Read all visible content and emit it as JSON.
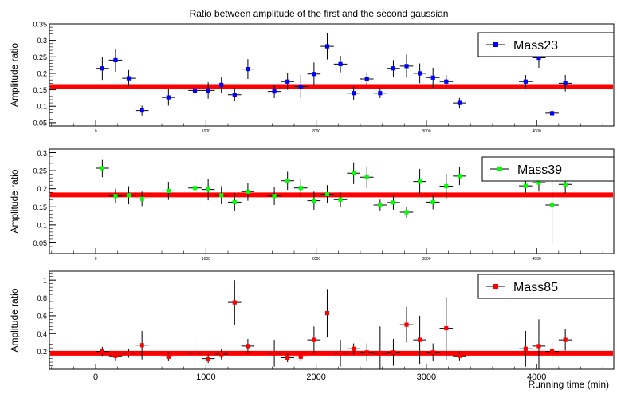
{
  "chart_data": {
    "type": "scatter",
    "title": "Ratio between amplitude of the first and the second gaussian",
    "xlabel": "Running time (min)",
    "xlim": [
      -420,
      4700
    ],
    "x_ticks_main": [
      0,
      1000,
      2000,
      3000,
      4000
    ],
    "x_ticks_small": [
      0,
      1000,
      2000,
      3000,
      4000
    ],
    "grid": false,
    "panels": [
      {
        "name": "Mass23",
        "ylabel": "Amplitude ratio",
        "ylim": [
          0.04,
          0.35
        ],
        "yticks": [
          0.05,
          0.1,
          0.15,
          0.2,
          0.25,
          0.3,
          0.35
        ],
        "ytick_labels": [
          "0.05",
          "0.1",
          "0.15",
          "0.2",
          "0.25",
          "0.3",
          "0.35"
        ],
        "marker_color": "#0000ff",
        "fit_value": 0.16,
        "points": [
          {
            "x": 60,
            "y": 0.215,
            "ey": 0.035,
            "ex": 60
          },
          {
            "x": 180,
            "y": 0.24,
            "ey": 0.035,
            "ex": 60
          },
          {
            "x": 300,
            "y": 0.185,
            "ey": 0.025,
            "ex": 60
          },
          {
            "x": 420,
            "y": 0.087,
            "ey": 0.015,
            "ex": 60
          },
          {
            "x": 660,
            "y": 0.127,
            "ey": 0.025,
            "ex": 60
          },
          {
            "x": 900,
            "y": 0.148,
            "ey": 0.025,
            "ex": 60
          },
          {
            "x": 1020,
            "y": 0.148,
            "ey": 0.025,
            "ex": 60
          },
          {
            "x": 1140,
            "y": 0.165,
            "ey": 0.025,
            "ex": 60
          },
          {
            "x": 1260,
            "y": 0.135,
            "ey": 0.02,
            "ex": 60
          },
          {
            "x": 1380,
            "y": 0.213,
            "ey": 0.03,
            "ex": 60
          },
          {
            "x": 1620,
            "y": 0.145,
            "ey": 0.02,
            "ex": 60
          },
          {
            "x": 1740,
            "y": 0.175,
            "ey": 0.025,
            "ex": 60
          },
          {
            "x": 1860,
            "y": 0.16,
            "ey": 0.035,
            "ex": 60
          },
          {
            "x": 1980,
            "y": 0.198,
            "ey": 0.035,
            "ex": 60
          },
          {
            "x": 2100,
            "y": 0.282,
            "ey": 0.04,
            "ex": 60
          },
          {
            "x": 2220,
            "y": 0.228,
            "ey": 0.025,
            "ex": 60
          },
          {
            "x": 2340,
            "y": 0.14,
            "ey": 0.02,
            "ex": 60
          },
          {
            "x": 2460,
            "y": 0.183,
            "ey": 0.02,
            "ex": 60
          },
          {
            "x": 2580,
            "y": 0.14,
            "ey": 0.015,
            "ex": 60
          },
          {
            "x": 2700,
            "y": 0.215,
            "ey": 0.025,
            "ex": 60
          },
          {
            "x": 2820,
            "y": 0.222,
            "ey": 0.035,
            "ex": 60
          },
          {
            "x": 2940,
            "y": 0.2,
            "ey": 0.03,
            "ex": 60
          },
          {
            "x": 3060,
            "y": 0.187,
            "ey": 0.03,
            "ex": 60
          },
          {
            "x": 3180,
            "y": 0.175,
            "ey": 0.02,
            "ex": 60
          },
          {
            "x": 3300,
            "y": 0.11,
            "ey": 0.015,
            "ex": 60
          },
          {
            "x": 3900,
            "y": 0.175,
            "ey": 0.02,
            "ex": 60
          },
          {
            "x": 4020,
            "y": 0.247,
            "ey": 0.03,
            "ex": 60
          },
          {
            "x": 4140,
            "y": 0.079,
            "ey": 0.013,
            "ex": 60
          },
          {
            "x": 4260,
            "y": 0.17,
            "ey": 0.025,
            "ex": 60
          }
        ]
      },
      {
        "name": "Mass39",
        "ylabel": "Amplitude ratio",
        "ylim": [
          0.02,
          0.31
        ],
        "yticks": [
          0.05,
          0.1,
          0.15,
          0.2,
          0.25,
          0.3
        ],
        "ytick_labels": [
          "0.05",
          "0.1",
          "0.15",
          "0.2",
          "0.25",
          "0.3"
        ],
        "marker_color": "#00ff00",
        "fit_value": 0.183,
        "points": [
          {
            "x": 60,
            "y": 0.257,
            "ey": 0.025,
            "ex": 60
          },
          {
            "x": 180,
            "y": 0.18,
            "ey": 0.02,
            "ex": 60
          },
          {
            "x": 300,
            "y": 0.182,
            "ey": 0.025,
            "ex": 60
          },
          {
            "x": 420,
            "y": 0.172,
            "ey": 0.02,
            "ex": 60
          },
          {
            "x": 660,
            "y": 0.194,
            "ey": 0.025,
            "ex": 60
          },
          {
            "x": 900,
            "y": 0.202,
            "ey": 0.025,
            "ex": 60
          },
          {
            "x": 1020,
            "y": 0.198,
            "ey": 0.03,
            "ex": 60
          },
          {
            "x": 1140,
            "y": 0.182,
            "ey": 0.025,
            "ex": 60
          },
          {
            "x": 1260,
            "y": 0.163,
            "ey": 0.025,
            "ex": 60
          },
          {
            "x": 1380,
            "y": 0.192,
            "ey": 0.025,
            "ex": 60
          },
          {
            "x": 1620,
            "y": 0.18,
            "ey": 0.025,
            "ex": 60
          },
          {
            "x": 1740,
            "y": 0.222,
            "ey": 0.025,
            "ex": 60
          },
          {
            "x": 1860,
            "y": 0.202,
            "ey": 0.025,
            "ex": 60
          },
          {
            "x": 1980,
            "y": 0.167,
            "ey": 0.025,
            "ex": 60
          },
          {
            "x": 2100,
            "y": 0.185,
            "ey": 0.025,
            "ex": 60
          },
          {
            "x": 2220,
            "y": 0.17,
            "ey": 0.02,
            "ex": 60
          },
          {
            "x": 2340,
            "y": 0.243,
            "ey": 0.03,
            "ex": 60
          },
          {
            "x": 2460,
            "y": 0.232,
            "ey": 0.03,
            "ex": 60
          },
          {
            "x": 2580,
            "y": 0.155,
            "ey": 0.015,
            "ex": 60
          },
          {
            "x": 2700,
            "y": 0.162,
            "ey": 0.02,
            "ex": 60
          },
          {
            "x": 2820,
            "y": 0.135,
            "ey": 0.015,
            "ex": 60
          },
          {
            "x": 2940,
            "y": 0.22,
            "ey": 0.035,
            "ex": 60
          },
          {
            "x": 3060,
            "y": 0.163,
            "ey": 0.02,
            "ex": 60
          },
          {
            "x": 3180,
            "y": 0.207,
            "ey": 0.035,
            "ex": 60
          },
          {
            "x": 3300,
            "y": 0.235,
            "ey": 0.025,
            "ex": 60
          },
          {
            "x": 3900,
            "y": 0.208,
            "ey": 0.02,
            "ex": 60
          },
          {
            "x": 4020,
            "y": 0.217,
            "ey": 0.025,
            "ex": 60
          },
          {
            "x": 4140,
            "y": 0.155,
            "ey": 0.11,
            "ex": 60
          },
          {
            "x": 4260,
            "y": 0.212,
            "ey": 0.025,
            "ex": 60
          }
        ]
      },
      {
        "name": "Mass85",
        "ylabel": "Amplitude ratio",
        "ylim": [
          0.0,
          1.1
        ],
        "yticks": [
          0.2,
          0.4,
          0.6,
          0.8,
          1
        ],
        "ytick_labels": [
          "0.2",
          "0.4",
          "0.6",
          "0.8",
          "1"
        ],
        "marker_color": "#ff0000",
        "fit_value": 0.18,
        "points": [
          {
            "x": 60,
            "y": 0.2,
            "ey": 0.05,
            "ex": 60
          },
          {
            "x": 180,
            "y": 0.15,
            "ey": 0.05,
            "ex": 60
          },
          {
            "x": 300,
            "y": 0.18,
            "ey": 0.05,
            "ex": 60
          },
          {
            "x": 420,
            "y": 0.27,
            "ey": 0.16,
            "ex": 60
          },
          {
            "x": 660,
            "y": 0.14,
            "ey": 0.05,
            "ex": 60
          },
          {
            "x": 900,
            "y": 0.18,
            "ey": 0.2,
            "ex": 60
          },
          {
            "x": 1020,
            "y": 0.12,
            "ey": 0.05,
            "ex": 60
          },
          {
            "x": 1140,
            "y": 0.17,
            "ey": 0.06,
            "ex": 60
          },
          {
            "x": 1260,
            "y": 0.75,
            "ey": 0.25,
            "ex": 60
          },
          {
            "x": 1380,
            "y": 0.26,
            "ey": 0.08,
            "ex": 60
          },
          {
            "x": 1620,
            "y": 0.18,
            "ey": 0.15,
            "ex": 60
          },
          {
            "x": 1740,
            "y": 0.13,
            "ey": 0.05,
            "ex": 60
          },
          {
            "x": 1860,
            "y": 0.14,
            "ey": 0.05,
            "ex": 60
          },
          {
            "x": 1980,
            "y": 0.33,
            "ey": 0.15,
            "ex": 60
          },
          {
            "x": 2100,
            "y": 0.63,
            "ey": 0.27,
            "ex": 60
          },
          {
            "x": 2220,
            "y": 0.18,
            "ey": 0.15,
            "ex": 60
          },
          {
            "x": 2340,
            "y": 0.23,
            "ey": 0.06,
            "ex": 60
          },
          {
            "x": 2460,
            "y": 0.19,
            "ey": 0.1,
            "ex": 60
          },
          {
            "x": 2580,
            "y": 0.18,
            "ey": 0.3,
            "ex": 60
          },
          {
            "x": 2700,
            "y": 0.19,
            "ey": 0.15,
            "ex": 60
          },
          {
            "x": 2820,
            "y": 0.5,
            "ey": 0.2,
            "ex": 60
          },
          {
            "x": 2940,
            "y": 0.33,
            "ey": 0.27,
            "ex": 60
          },
          {
            "x": 3060,
            "y": 0.19,
            "ey": 0.1,
            "ex": 60
          },
          {
            "x": 3180,
            "y": 0.46,
            "ey": 0.35,
            "ex": 60
          },
          {
            "x": 3300,
            "y": 0.15,
            "ey": 0.05,
            "ex": 60
          },
          {
            "x": 3900,
            "y": 0.23,
            "ey": 0.2,
            "ex": 60
          },
          {
            "x": 4020,
            "y": 0.26,
            "ey": 0.3,
            "ex": 60
          },
          {
            "x": 4140,
            "y": 0.2,
            "ey": 0.1,
            "ex": 60
          },
          {
            "x": 4260,
            "y": 0.33,
            "ey": 0.12,
            "ex": 60
          }
        ]
      }
    ]
  },
  "colors": {
    "fit_line": "#ff0000",
    "frame": "#000000",
    "error_bars": "#000000"
  }
}
